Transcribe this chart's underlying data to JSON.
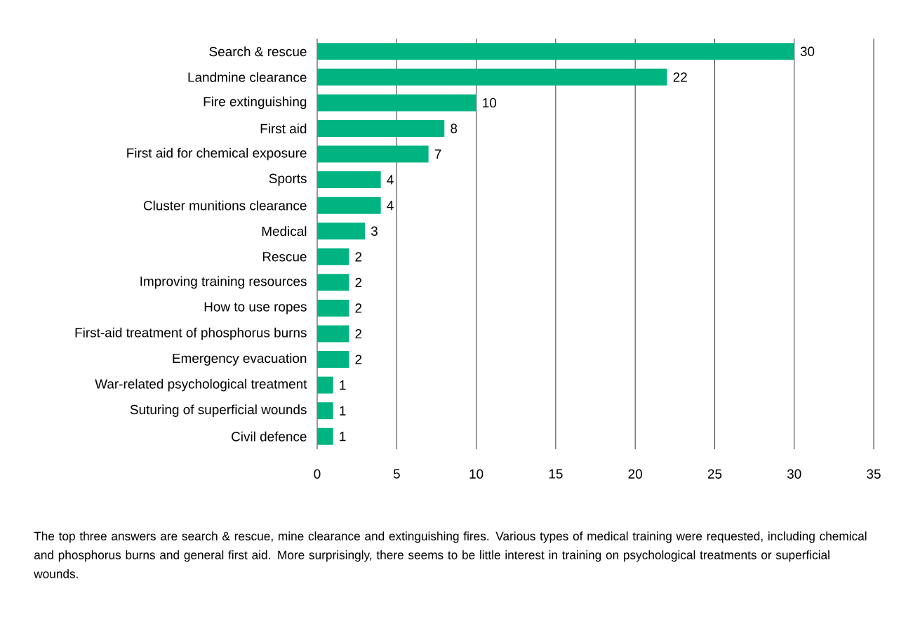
{
  "chart_data": {
    "type": "bar",
    "orientation": "horizontal",
    "categories": [
      "Search & rescue",
      "Landmine clearance",
      "Fire extinguishing",
      "First aid",
      "First aid for chemical exposure",
      "Sports",
      "Cluster munitions clearance",
      "Medical",
      "Rescue",
      "Improving training resources",
      "How to use ropes",
      "First-aid treatment of phosphorus burns",
      "Emergency evacuation",
      "War-related psychological treatment",
      "Suturing of superficial wounds",
      "Civil defence"
    ],
    "values": [
      30,
      22,
      10,
      8,
      7,
      4,
      4,
      3,
      2,
      2,
      2,
      2,
      2,
      1,
      1,
      1
    ],
    "color": "#00b482",
    "data_labels": true,
    "grid": "x",
    "xlim": [
      0,
      35
    ],
    "xticks": [
      0,
      5,
      10,
      15,
      20,
      25,
      30,
      35
    ],
    "annotations": [
      "The top three answers are search & rescue, mine clearance and extinguishing fires. Various types of medical training were requested, including chemical and phosphorus burns and general first aid. More surprisingly, there seems to be little interest in training on psychological treatments or superficial wounds."
    ]
  }
}
